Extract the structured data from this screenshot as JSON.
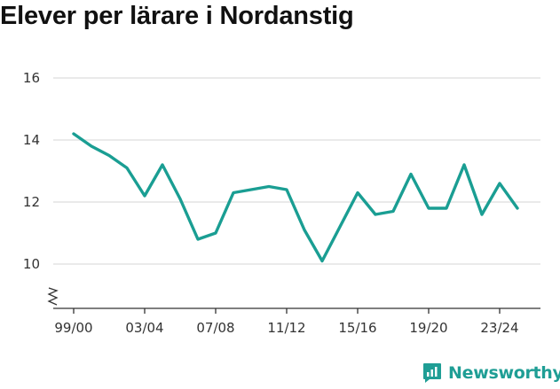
{
  "title": "Elever per lärare i Nordanstig",
  "brand": {
    "name": "Newsworthy",
    "color": "#1f9e95",
    "icon": "newsworthy-logo-icon"
  },
  "colors": {
    "line": "#1a9e93",
    "grid": "#dddddd",
    "axis": "#333333"
  },
  "chart_data": {
    "type": "line",
    "title": "Elever per lärare i Nordanstig",
    "xlabel": "",
    "ylabel": "",
    "ylim": [
      8.5,
      16.6
    ],
    "yticks": [
      10,
      12,
      14,
      16
    ],
    "y_axis_break": true,
    "grid": true,
    "legend": "none",
    "x_tick_labels": [
      "99/00",
      "03/04",
      "07/08",
      "11/12",
      "15/16",
      "19/20",
      "23/24"
    ],
    "x": [
      "99/00",
      "00/01",
      "01/02",
      "02/03",
      "03/04",
      "04/05",
      "05/06",
      "06/07",
      "07/08",
      "08/09",
      "09/10",
      "10/11",
      "11/12",
      "12/13",
      "13/14",
      "14/15",
      "15/16",
      "16/17",
      "17/18",
      "18/19",
      "19/20",
      "20/21",
      "21/22",
      "22/23",
      "23/24",
      "24/25"
    ],
    "series": [
      {
        "values": [
          14.2,
          13.8,
          13.5,
          13.1,
          12.2,
          13.2,
          12.1,
          10.8,
          11.0,
          12.3,
          12.4,
          12.5,
          12.4,
          11.1,
          10.1,
          11.2,
          12.3,
          11.6,
          11.7,
          12.9,
          11.8,
          11.8,
          13.2,
          11.6,
          12.6,
          11.8
        ]
      }
    ]
  }
}
